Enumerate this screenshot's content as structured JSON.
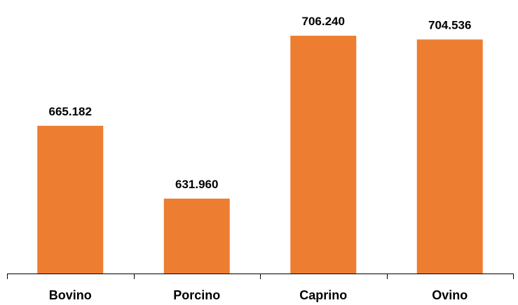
{
  "chart_data": {
    "type": "bar",
    "categories": [
      "Bovino",
      "Porcino",
      "Caprino",
      "Ovino"
    ],
    "values": [
      665.182,
      631.96,
      706.24,
      704.536
    ],
    "value_labels": [
      "665.182",
      "631.960",
      "706.240",
      "704.536"
    ],
    "title": "",
    "xlabel": "",
    "ylabel": "",
    "ylim": [
      597.8,
      708.5
    ],
    "grid": false,
    "legend": "none",
    "bar_color": "#ED7D31",
    "axis_color": "#000000"
  }
}
